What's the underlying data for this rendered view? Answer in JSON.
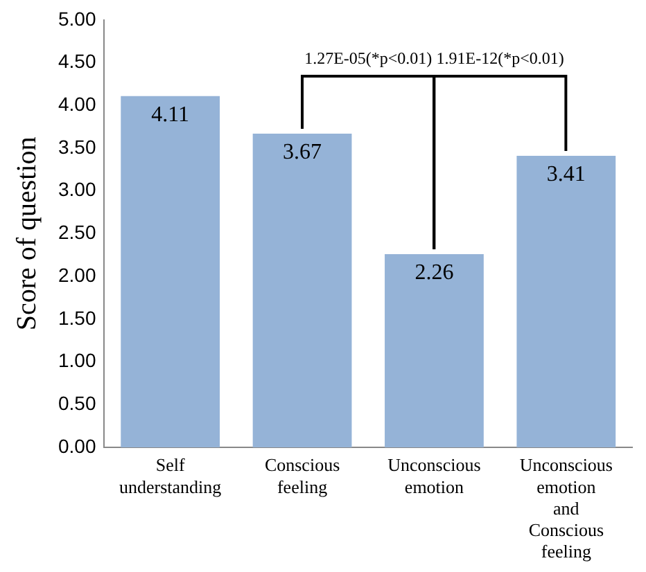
{
  "chart_data": {
    "type": "bar",
    "ylabel": "Score of question",
    "categories": [
      "Self understanding",
      "Conscious feeling",
      "Unconscious emotion",
      "Unconscious emotion and Conscious feeling"
    ],
    "values": [
      4.11,
      3.67,
      2.26,
      3.41
    ],
    "color": "#95b3d7",
    "data_labels": true,
    "ylim": [
      0,
      5
    ],
    "yticks": [
      {
        "value": 0,
        "label": "0.00"
      },
      {
        "value": 0.5,
        "label": "0.50"
      },
      {
        "value": 1,
        "label": "1.00"
      },
      {
        "value": 1.5,
        "label": "1.50"
      },
      {
        "value": 2,
        "label": "2.00"
      },
      {
        "value": 2.5,
        "label": "2.50"
      },
      {
        "value": 3,
        "label": "3.00"
      },
      {
        "value": 3.5,
        "label": "3.50"
      },
      {
        "value": 4,
        "label": "4.00"
      },
      {
        "value": 4.5,
        "label": "4.50"
      },
      {
        "value": 5,
        "label": "5.00"
      }
    ],
    "grid": false,
    "annotations": [
      "1.27E-05(*p<0.01)",
      "1.91E-12(*p<0.01)"
    ]
  }
}
